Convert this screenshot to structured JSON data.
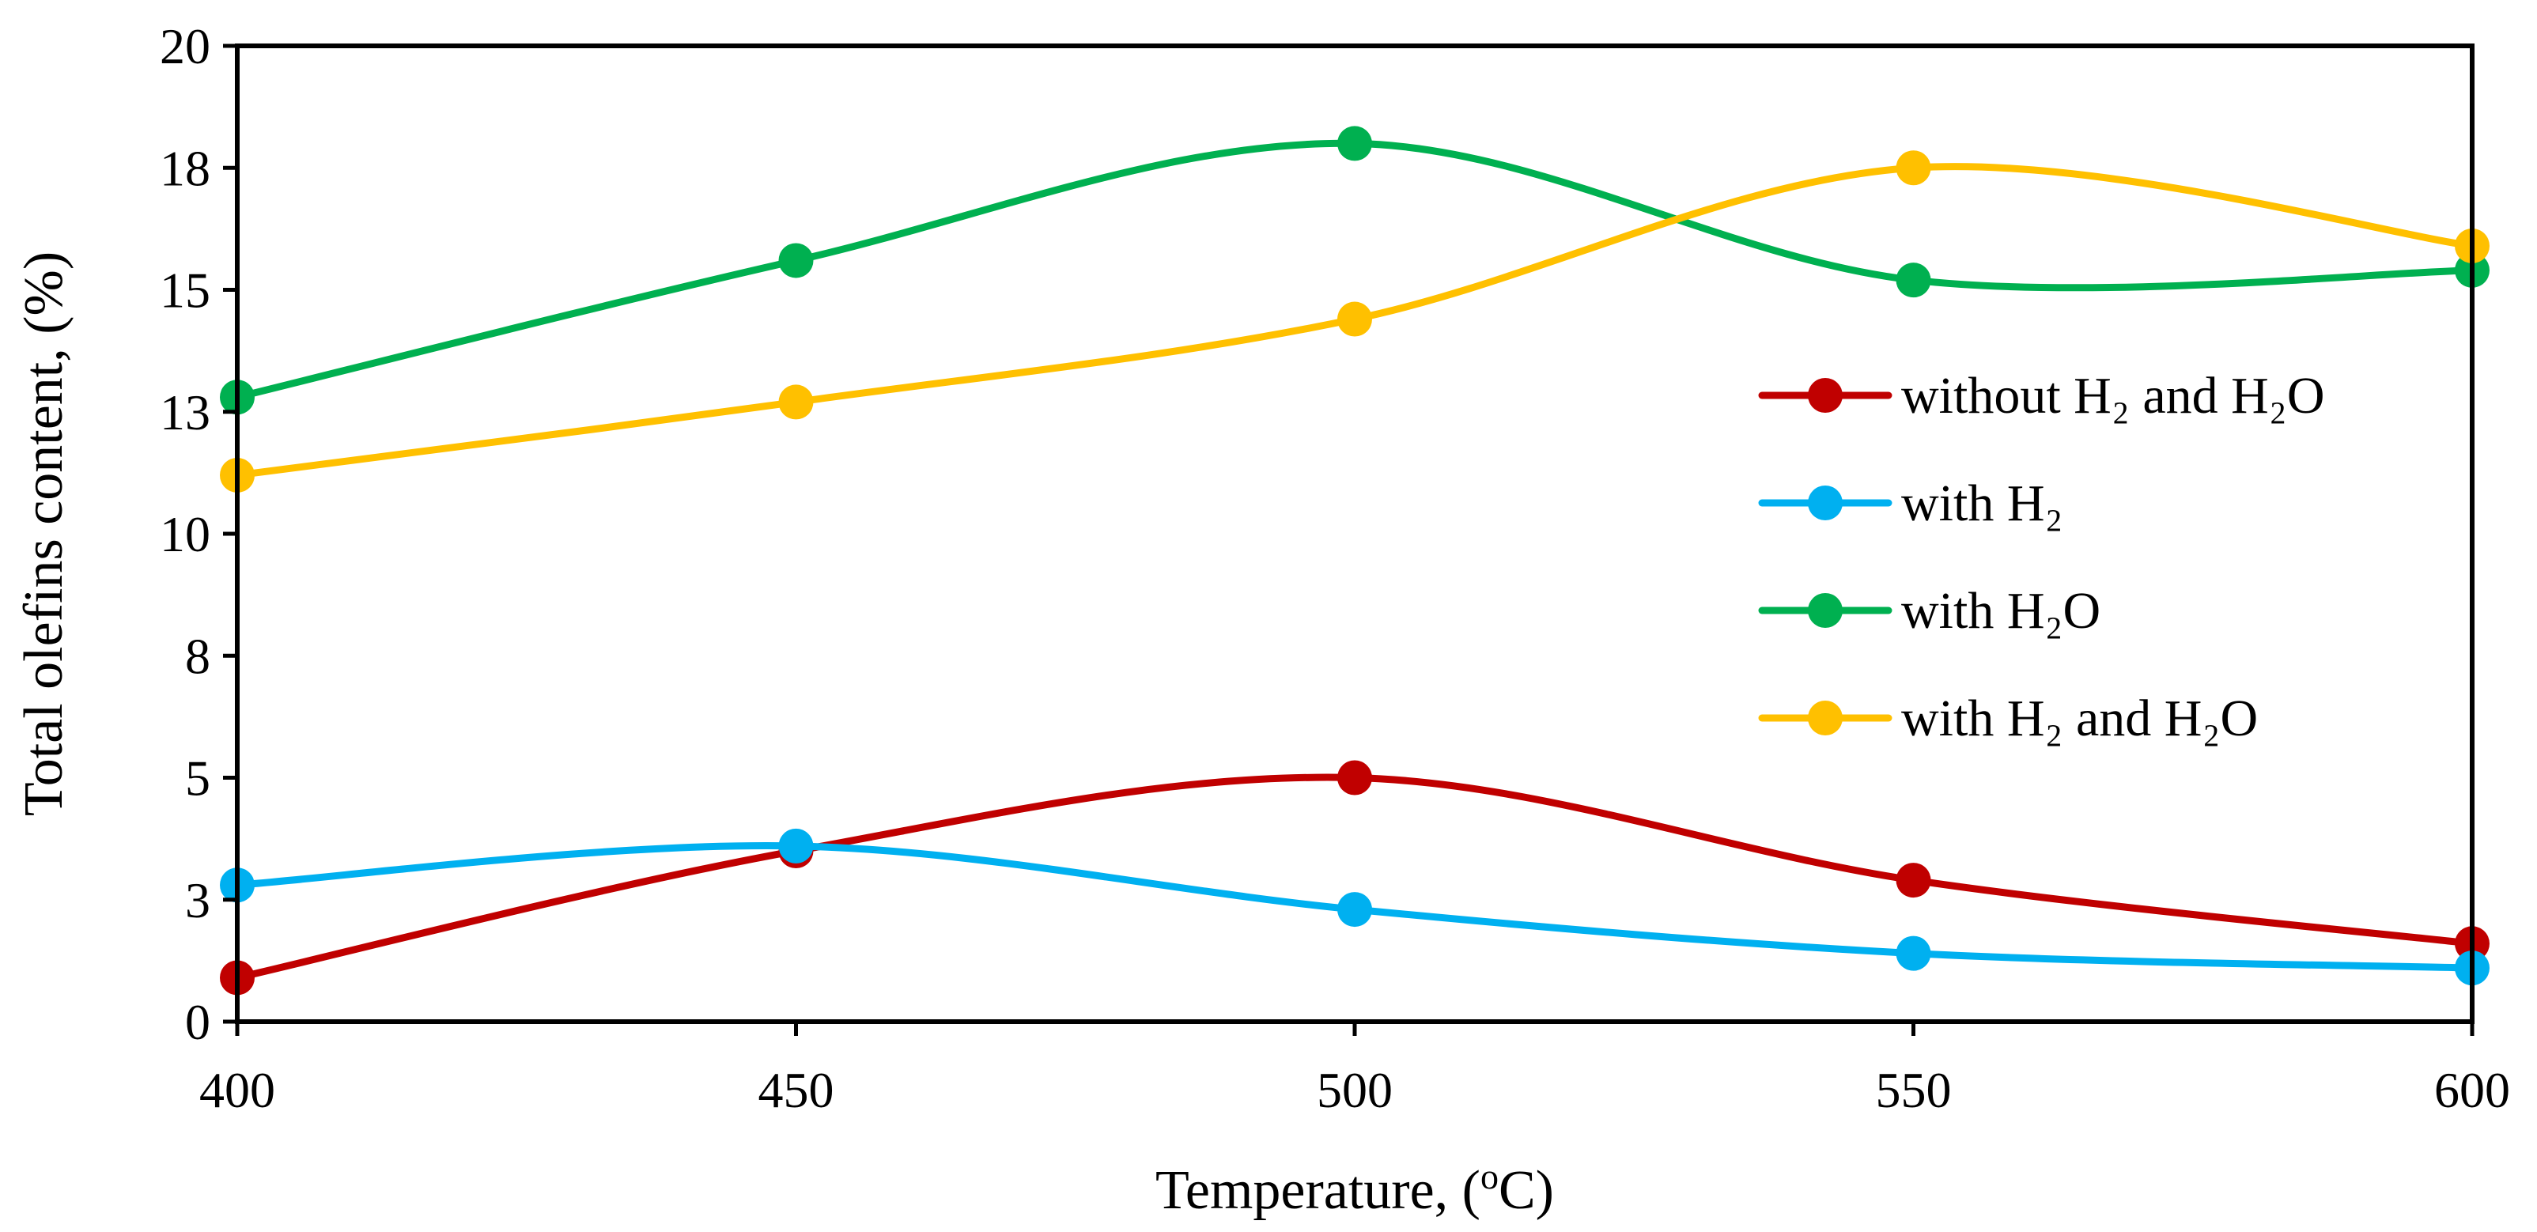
{
  "chart_data": {
    "type": "line",
    "smooth": true,
    "xlabel": "Temperature, (oC)",
    "xlabel_parts": {
      "prefix": "Temperature, (",
      "sup": "o",
      "suffix": "C)"
    },
    "ylabel": "Total olefins content, (%)",
    "x": [
      400,
      450,
      500,
      550,
      600
    ],
    "xlim": [
      400,
      600
    ],
    "ylim": [
      0,
      20
    ],
    "xticks": [
      400,
      450,
      500,
      550,
      600
    ],
    "xtick_labels": [
      "400",
      "450",
      "500",
      "550",
      "600"
    ],
    "yticks": [
      0,
      2.5,
      5,
      7.5,
      10,
      12.5,
      15,
      17.5,
      20
    ],
    "ytick_labels": [
      "0",
      "3",
      "5",
      "8",
      "10",
      "13",
      "15",
      "18",
      "20"
    ],
    "grid": false,
    "legend_position": "right",
    "series": [
      {
        "name": "without H2 and H2O",
        "legend_label": "without H₂ and H₂O",
        "color": "#C00000",
        "values": [
          0.9,
          3.5,
          5.0,
          2.9,
          1.6
        ]
      },
      {
        "name": "with H2",
        "legend_label": "with H₂",
        "color": "#00B0F0",
        "values": [
          2.8,
          3.6,
          2.3,
          1.4,
          1.1
        ]
      },
      {
        "name": "with H2O",
        "legend_label": "with H₂O",
        "color": "#00B050",
        "values": [
          12.8,
          15.6,
          18.0,
          15.2,
          15.4
        ]
      },
      {
        "name": "with H2 and H2O",
        "legend_label": "with H₂ and H₂O",
        "color": "#FFC000",
        "values": [
          11.2,
          12.7,
          14.4,
          17.5,
          15.9
        ]
      }
    ]
  }
}
